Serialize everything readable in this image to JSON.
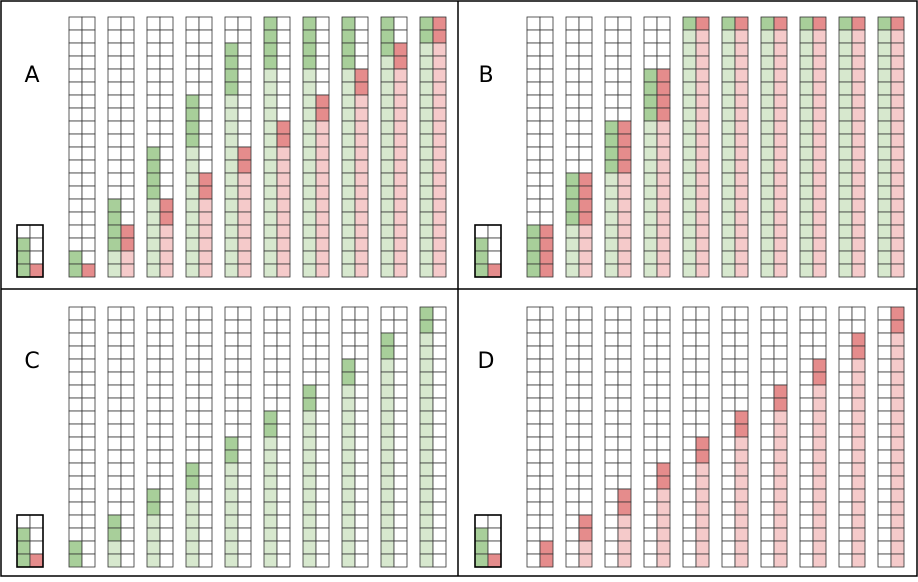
{
  "colors": {
    "green_dark": "#a8cf9a",
    "green_light": "#d7e8ce",
    "red_dark": "#e58c8c",
    "red_light": "#f5caca",
    "grid_line": "#333333",
    "border": "#000000"
  },
  "grid": {
    "rows_per_column": 20,
    "columns_per_panel": 10
  },
  "panels": [
    {
      "label": "A",
      "legend": {
        "green_dark_rows": 3,
        "red_dark_rows": 1
      },
      "columns": [
        {
          "green_dark": 2,
          "green_light": 0,
          "red_dark": 1,
          "red_light": 0
        },
        {
          "green_dark": 4,
          "green_light": 2,
          "red_dark": 2,
          "red_light": 2
        },
        {
          "green_dark": 4,
          "green_light": 6,
          "red_dark": 2,
          "red_light": 4
        },
        {
          "green_dark": 4,
          "green_light": 10,
          "red_dark": 2,
          "red_light": 6
        },
        {
          "green_dark": 4,
          "green_light": 14,
          "red_dark": 2,
          "red_light": 8
        },
        {
          "green_dark": 4,
          "green_light": 16,
          "red_dark": 2,
          "red_light": 10
        },
        {
          "green_dark": 4,
          "green_light": 16,
          "red_dark": 2,
          "red_light": 12
        },
        {
          "green_dark": 4,
          "green_light": 16,
          "red_dark": 2,
          "red_light": 14
        },
        {
          "green_dark": 3,
          "green_light": 17,
          "red_dark": 2,
          "red_light": 16
        },
        {
          "green_dark": 2,
          "green_light": 18,
          "red_dark": 2,
          "red_light": 18
        }
      ]
    },
    {
      "label": "B",
      "legend": {
        "green_dark_rows": 3,
        "red_dark_rows": 1
      },
      "columns": [
        {
          "green_dark": 4,
          "green_light": 0,
          "red_dark": 4,
          "red_light": 0
        },
        {
          "green_dark": 4,
          "green_light": 4,
          "red_dark": 4,
          "red_light": 4
        },
        {
          "green_dark": 4,
          "green_light": 8,
          "red_dark": 4,
          "red_light": 8
        },
        {
          "green_dark": 4,
          "green_light": 12,
          "red_dark": 4,
          "red_light": 12
        },
        {
          "green_dark": 1,
          "green_light": 19,
          "red_dark": 1,
          "red_light": 19
        },
        {
          "green_dark": 1,
          "green_light": 19,
          "red_dark": 1,
          "red_light": 19
        },
        {
          "green_dark": 1,
          "green_light": 19,
          "red_dark": 1,
          "red_light": 19
        },
        {
          "green_dark": 1,
          "green_light": 19,
          "red_dark": 1,
          "red_light": 19
        },
        {
          "green_dark": 1,
          "green_light": 19,
          "red_dark": 1,
          "red_light": 19
        },
        {
          "green_dark": 1,
          "green_light": 19,
          "red_dark": 1,
          "red_light": 19
        }
      ]
    },
    {
      "label": "C",
      "legend": {
        "green_dark_rows": 3,
        "red_dark_rows": 1
      },
      "columns": [
        {
          "green_dark": 2,
          "green_light": 0,
          "red_dark": 0,
          "red_light": 0
        },
        {
          "green_dark": 2,
          "green_light": 2,
          "red_dark": 0,
          "red_light": 0
        },
        {
          "green_dark": 2,
          "green_light": 4,
          "red_dark": 0,
          "red_light": 0
        },
        {
          "green_dark": 2,
          "green_light": 6,
          "red_dark": 0,
          "red_light": 0
        },
        {
          "green_dark": 2,
          "green_light": 8,
          "red_dark": 0,
          "red_light": 0
        },
        {
          "green_dark": 2,
          "green_light": 10,
          "red_dark": 0,
          "red_light": 0
        },
        {
          "green_dark": 2,
          "green_light": 12,
          "red_dark": 0,
          "red_light": 0
        },
        {
          "green_dark": 2,
          "green_light": 14,
          "red_dark": 0,
          "red_light": 0
        },
        {
          "green_dark": 2,
          "green_light": 16,
          "red_dark": 0,
          "red_light": 0
        },
        {
          "green_dark": 2,
          "green_light": 18,
          "red_dark": 0,
          "red_light": 0
        }
      ]
    },
    {
      "label": "D",
      "legend": {
        "green_dark_rows": 3,
        "red_dark_rows": 1
      },
      "columns": [
        {
          "green_dark": 0,
          "green_light": 0,
          "red_dark": 2,
          "red_light": 0
        },
        {
          "green_dark": 0,
          "green_light": 0,
          "red_dark": 2,
          "red_light": 2
        },
        {
          "green_dark": 0,
          "green_light": 0,
          "red_dark": 2,
          "red_light": 4
        },
        {
          "green_dark": 0,
          "green_light": 0,
          "red_dark": 2,
          "red_light": 6
        },
        {
          "green_dark": 0,
          "green_light": 0,
          "red_dark": 2,
          "red_light": 8
        },
        {
          "green_dark": 0,
          "green_light": 0,
          "red_dark": 2,
          "red_light": 10
        },
        {
          "green_dark": 0,
          "green_light": 0,
          "red_dark": 2,
          "red_light": 12
        },
        {
          "green_dark": 0,
          "green_light": 0,
          "red_dark": 2,
          "red_light": 14
        },
        {
          "green_dark": 0,
          "green_light": 0,
          "red_dark": 2,
          "red_light": 16
        },
        {
          "green_dark": 0,
          "green_light": 0,
          "red_dark": 2,
          "red_light": 18
        }
      ]
    }
  ]
}
